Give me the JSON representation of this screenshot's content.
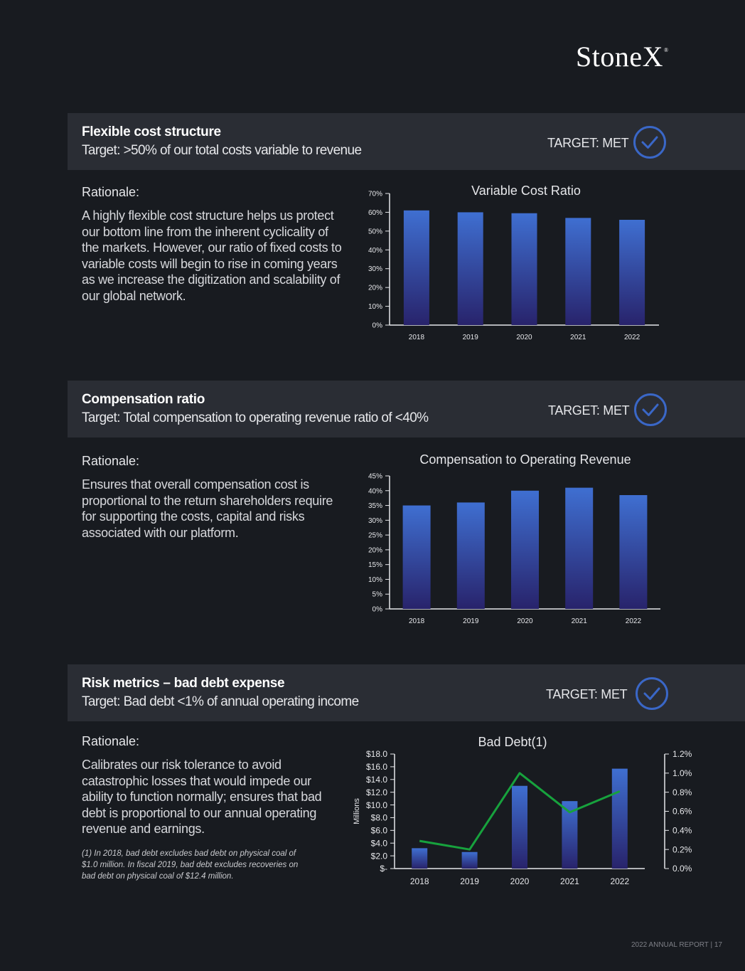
{
  "brand": {
    "name": "StoneX",
    "mark": "®"
  },
  "colors": {
    "accent": "#3a67c7",
    "bar_top": "#3f6fd1",
    "bar_bottom": "#28236b",
    "line": "#17a23d"
  },
  "sections": [
    {
      "title": "Flexible cost structure",
      "target": "Target: >50% of our total costs variable to revenue",
      "status": "TARGET: MET",
      "rationale_heading": "Rationale:",
      "rationale": "A highly flexible cost structure helps us protect our bottom line from the inherent cyclicality of the markets. However, our ratio of fixed costs to variable costs will begin to rise in coming years as we increase the digitization and scalability of our global network."
    },
    {
      "title": "Compensation ratio",
      "target": "Target: Total compensation to operating revenue ratio of <40%",
      "status": "TARGET: MET",
      "rationale_heading": "Rationale:",
      "rationale": "Ensures that overall compensation cost is proportional to the return shareholders require for supporting the costs, capital and risks associated with our platform."
    },
    {
      "title": "Risk metrics – bad debt expense",
      "target": "Target: Bad debt <1% of annual operating income",
      "status": "TARGET: MET",
      "rationale_heading": "Rationale:",
      "rationale": "Calibrates our risk tolerance to avoid catastrophic losses that would impede our ability to function normally; ensures that bad debt is proportional to our annual operating revenue and earnings.",
      "footnote": "(1) In 2018, bad debt excludes bad debt on physical coal of $1.0 million. In fiscal 2019, bad debt excludes recoveries on bad debt on physical coal of $12.4 million."
    }
  ],
  "chart_data": [
    {
      "type": "bar",
      "title": "Variable Cost Ratio",
      "categories": [
        "2018",
        "2019",
        "2020",
        "2021",
        "2022"
      ],
      "values": [
        61,
        60,
        59.5,
        57,
        56
      ],
      "ylim": [
        0,
        70
      ],
      "yticks": [
        "0%",
        "10%",
        "20%",
        "30%",
        "40%",
        "50%",
        "60%",
        "70%"
      ],
      "grid": false
    },
    {
      "type": "bar",
      "title": "Compensation to Operating Revenue",
      "categories": [
        "2018",
        "2019",
        "2020",
        "2021",
        "2022"
      ],
      "values": [
        35,
        36,
        40,
        41,
        38.5
      ],
      "ylim": [
        0,
        45
      ],
      "yticks": [
        "0%",
        "5%",
        "10%",
        "15%",
        "20%",
        "25%",
        "30%",
        "35%",
        "40%",
        "45%"
      ],
      "grid": false
    },
    {
      "type": "bar",
      "title": "Bad Debt(1)",
      "categories": [
        "2018",
        "2019",
        "2020",
        "2021",
        "2022"
      ],
      "ylabel": "Millions",
      "ylim": [
        0,
        18
      ],
      "yticks": [
        "$-",
        "$2.0",
        "$4.0",
        "$6.0",
        "$8.0",
        "$10.0",
        "$12.0",
        "$14.0",
        "$16.0",
        "$18.0"
      ],
      "y2lim": [
        0,
        1.2
      ],
      "y2ticks": [
        "0.0%",
        "0.2%",
        "0.4%",
        "0.6%",
        "0.8%",
        "1.0%",
        "1.2%"
      ],
      "series": [
        {
          "type": "bar",
          "axis": "left",
          "values": [
            3.2,
            2.6,
            13.0,
            10.6,
            15.7
          ]
        },
        {
          "type": "line",
          "axis": "right",
          "values": [
            0.29,
            0.2,
            1.0,
            0.59,
            0.81
          ]
        }
      ],
      "grid": false
    }
  ],
  "footer": "2022 ANNUAL REPORT  |  17"
}
